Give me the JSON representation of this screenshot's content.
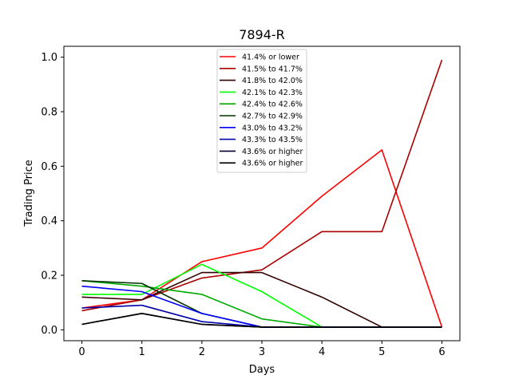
{
  "chart_data": {
    "type": "line",
    "title": "7894-R",
    "xlabel": "Days",
    "ylabel": "Trading Price",
    "x": [
      0,
      1,
      2,
      3,
      4,
      5,
      6
    ],
    "xticks": [
      "0",
      "1",
      "2",
      "3",
      "4",
      "5",
      "6"
    ],
    "yticks": [
      "0.0",
      "0.2",
      "0.4",
      "0.6",
      "0.8",
      "1.0"
    ],
    "xlim": [
      -0.3,
      6.3
    ],
    "ylim": [
      -0.04,
      1.04
    ],
    "grid": false,
    "legend_position": "top-center",
    "series": [
      {
        "name": "41.4% or lower",
        "color": "#ff0000",
        "values": [
          0.08,
          0.11,
          0.25,
          0.3,
          0.49,
          0.66,
          0.01
        ]
      },
      {
        "name": "41.5% to 41.7%",
        "color": "#aa0000",
        "values": [
          0.07,
          0.11,
          0.19,
          0.22,
          0.36,
          0.36,
          0.99
        ]
      },
      {
        "name": "41.8% to 42.0%",
        "color": "#330000",
        "values": [
          0.12,
          0.11,
          0.21,
          0.21,
          0.12,
          0.01,
          0.01
        ]
      },
      {
        "name": "42.1% to 42.3%",
        "color": "#00ff00",
        "values": [
          0.13,
          0.13,
          0.24,
          0.14,
          0.01,
          0.01,
          0.01
        ]
      },
      {
        "name": "42.4% to 42.6%",
        "color": "#00aa00",
        "values": [
          0.18,
          0.16,
          0.13,
          0.04,
          0.01,
          0.01,
          0.01
        ]
      },
      {
        "name": "42.7% to 42.9%",
        "color": "#003300",
        "values": [
          0.18,
          0.17,
          0.06,
          0.01,
          0.01,
          0.01,
          0.01
        ]
      },
      {
        "name": "43.0% to 43.2%",
        "color": "#0000ff",
        "values": [
          0.16,
          0.14,
          0.06,
          0.01,
          0.01,
          0.01,
          0.01
        ]
      },
      {
        "name": "43.3% to 43.5%",
        "color": "#0000aa",
        "values": [
          0.08,
          0.09,
          0.03,
          0.01,
          0.01,
          0.01,
          0.01
        ]
      },
      {
        "name": "43.6% or higher",
        "color": "#000033",
        "values": [
          0.02,
          0.06,
          0.02,
          0.01,
          0.01,
          0.01,
          0.01
        ]
      },
      {
        "name": "43.6% or higher",
        "color": "#000000",
        "values": [
          0.02,
          0.06,
          0.02,
          0.01,
          0.01,
          0.01,
          0.01
        ]
      }
    ]
  }
}
